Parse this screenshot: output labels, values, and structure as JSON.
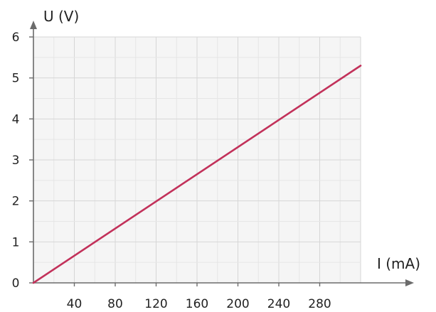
{
  "chart_data": {
    "type": "line",
    "title": "",
    "xlabel": "I (mA)",
    "ylabel": "U (V)",
    "xlim": [
      0,
      320
    ],
    "ylim": [
      0,
      6
    ],
    "xticks": [
      40,
      80,
      120,
      160,
      200,
      240,
      280
    ],
    "yticks": [
      0,
      1,
      2,
      3,
      4,
      5,
      6
    ],
    "grid": true,
    "series": [
      {
        "color": "#c2315a",
        "x": [
          0,
          320
        ],
        "y": [
          0,
          5.3
        ]
      }
    ]
  },
  "colors": {
    "grid_minor": "#e6e6e6",
    "grid_major": "#d6d6d6",
    "axis": "#6b6b6b",
    "plot_bg": "#f5f5f5"
  }
}
